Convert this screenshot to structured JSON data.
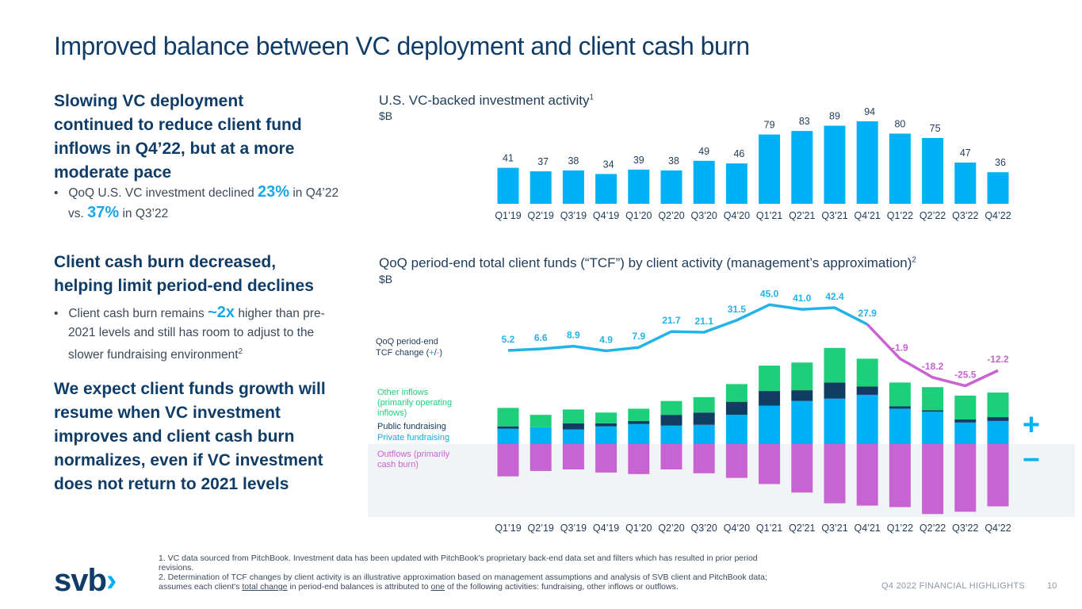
{
  "page": {
    "title": "Improved balance between VC deployment and client cash burn",
    "footer_right": "Q4 2022 FINANCIAL HIGHLIGHTS",
    "page_number": "10",
    "logo_text": "svb"
  },
  "left": {
    "s1_heading": "Slowing VC deployment continued to reduce client fund inflows in Q4’22, but at a more moderate pace",
    "s1_bullet": {
      "pre": "QoQ U.S. VC investment declined ",
      "v1": "23%",
      "mid": " in Q4’22 vs. ",
      "v2": "37%",
      "post": " in Q3’22"
    },
    "s2_heading": "Client cash burn decreased, helping limit period-end declines",
    "s2_bullet": {
      "pre": "Client cash burn remains ",
      "v1": "~2x",
      "post": " higher than pre-2021 levels and still has room to adjust to the slower fundraising environment",
      "sup": "2"
    },
    "s3_heading": "We expect client funds growth will resume when VC investment improves and client cash burn normalizes, even if VC investment does not return to 2021 levels"
  },
  "footnotes": {
    "n1": "1. VC data sourced from PitchBook. Investment data has been updated with PitchBook’s proprietary back-end data set and filters which has resulted in prior period revisions.",
    "n2_a": "2. Determination of TCF changes by client activity is an illustrative approximation based on management assumptions and analysis of SVB client and PitchBook data; assumes each client's ",
    "n2_u1": "total change",
    "n2_b": " in period-end balances is attributed to ",
    "n2_u2": "one",
    "n2_c": " of the following activities: fundraising, other inflows or outflows."
  },
  "colors": {
    "accent": "#00b2f5",
    "title": "#0f3d67",
    "other_inflows": "#1ecf7a",
    "public_fundraising": "#123d63",
    "private_fundraising": "#00b2f5",
    "outflows": "#c864d2",
    "tcf_line_pos": "#22b3e8",
    "tcf_line_neg": "#c864d2"
  },
  "chart_data": [
    {
      "type": "bar",
      "title": "U.S. VC-backed investment activity",
      "title_sup": "1",
      "unit": "$B",
      "categories": [
        "Q1’19",
        "Q2’19",
        "Q3’19",
        "Q4’19",
        "Q1’20",
        "Q2’20",
        "Q3’20",
        "Q4’20",
        "Q1’21",
        "Q2’21",
        "Q3’21",
        "Q4’21",
        "Q1’22",
        "Q2’22",
        "Q3’22",
        "Q4’22"
      ],
      "values": [
        41,
        37,
        38,
        34,
        39,
        38,
        49,
        46,
        79,
        83,
        89,
        94,
        80,
        75,
        47,
        36
      ],
      "ylim": [
        0,
        100
      ]
    },
    {
      "type": "bar",
      "stacked": true,
      "title": "QoQ period-end total client funds (“TCF”) by client activity (management’s approximation)",
      "title_sup": "2",
      "unit": "$B",
      "categories": [
        "Q1’19",
        "Q2’19",
        "Q3’19",
        "Q4’19",
        "Q1’20",
        "Q2’20",
        "Q3’20",
        "Q4’20",
        "Q1’21",
        "Q2’21",
        "Q3’21",
        "Q4’21",
        "Q1’22",
        "Q2’22",
        "Q3’22",
        "Q4’22"
      ],
      "series": [
        {
          "name": "Private fundraising",
          "values": [
            20,
            22,
            19,
            23,
            26,
            24,
            25,
            38,
            50,
            56,
            59,
            64,
            46,
            42,
            28,
            30
          ]
        },
        {
          "name": "Public fundraising",
          "values": [
            3,
            0,
            8,
            4,
            4,
            14,
            16,
            17,
            19,
            14,
            21,
            11,
            3,
            2,
            4,
            5
          ]
        },
        {
          "name": "Other inflows (primarily operating inflows)",
          "values": [
            24,
            16,
            18,
            14,
            16,
            18,
            20,
            23,
            33,
            36,
            45,
            36,
            31,
            30,
            31,
            32
          ]
        },
        {
          "name": "Outflows (primarily cash burn)",
          "values": [
            -42,
            -35,
            -33,
            -37,
            -39,
            -33,
            -38,
            -44,
            -52,
            -63,
            -77,
            -80,
            -82,
            -91,
            -88,
            -81
          ]
        }
      ],
      "line": {
        "name": "QoQ period-end TCF change (+/-)",
        "values": [
          5.2,
          6.6,
          8.9,
          4.9,
          7.9,
          21.7,
          21.1,
          31.5,
          45.0,
          41.0,
          42.4,
          27.9,
          -1.9,
          -18.2,
          -25.5,
          -12.2
        ],
        "labels": [
          "5.2",
          "6.6",
          "8.9",
          "4.9",
          "7.9",
          "21.7",
          "21.1",
          "31.5",
          "45.0",
          "41.0",
          "42.4",
          "27.9",
          "-1.9",
          "-18.2",
          "-25.5",
          "-12.2"
        ]
      },
      "legend": {
        "line_label_1": "QoQ period-end",
        "line_label_2a": "TCF change (",
        "line_plus": "+",
        "line_slash": "/",
        "line_minus": "-",
        "line_label_2b": ")",
        "other_1": "Other inflows",
        "other_2": "(primarily operating",
        "other_3": "inflows)",
        "public": "Public fundraising",
        "private": "Private fundraising",
        "out_1": "Outflows (primarily",
        "out_2": "cash burn)",
        "plus_sign": "+",
        "minus_sign": "–"
      }
    }
  ]
}
